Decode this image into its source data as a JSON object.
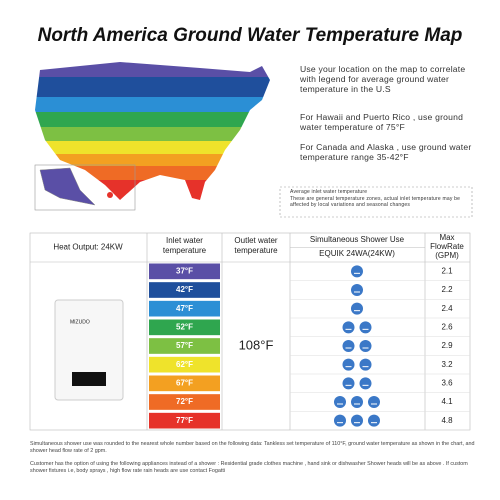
{
  "header": {
    "title": "North America Ground Water Temperature Map"
  },
  "notes": [
    "Use your location on the map to correlate with legend for average ground water temperature in the U.S",
    "For Hawaii and Puerto Rico , use ground water temperature of 75°F",
    "For Canada and Alaska , use ground water temperature range 35-42°F"
  ],
  "legend": {
    "title": "Average inlet water temperature",
    "text": "These are general temperature zones, actual inlet temperature may be affected by local variations and seasonal changes"
  },
  "table": {
    "headers": [
      "Heat Output: 24KW",
      "Inlet water temperature",
      "Outlet water temperature",
      "Simultaneous Shower Use",
      "Max FlowRate (GPM)"
    ],
    "subheader": "EQUIK 24WA(24KW)",
    "brand": "MIZUDO",
    "outlet": "108°F",
    "rows": [
      {
        "inlet": "37°F",
        "color": "#5a4fa6",
        "showers": 1,
        "flow": 2.1
      },
      {
        "inlet": "42°F",
        "color": "#1f4f9c",
        "showers": 1,
        "flow": 2.2
      },
      {
        "inlet": "47°F",
        "color": "#2b8fd5",
        "showers": 1,
        "flow": 2.4
      },
      {
        "inlet": "52°F",
        "color": "#2fa64f",
        "showers": 2,
        "flow": 2.6
      },
      {
        "inlet": "57°F",
        "color": "#7dc043",
        "showers": 2,
        "flow": 2.9
      },
      {
        "inlet": "62°F",
        "color": "#efe32b",
        "showers": 2,
        "flow": 3.2
      },
      {
        "inlet": "67°F",
        "color": "#f3a021",
        "showers": 2,
        "flow": 3.6
      },
      {
        "inlet": "72°F",
        "color": "#ef6b25",
        "showers": 3,
        "flow": 4.1
      },
      {
        "inlet": "77°F",
        "color": "#e6322a",
        "showers": 3,
        "flow": 4.8
      }
    ]
  },
  "footer": [
    "Simultaneous shower use was rounded to the nearest whole number based on the following data: Tankless set temperature of 110°F, ground water temperature as shown in the chart, and shower head flow rate of 2 gpm.",
    "Customer has the option of using the following appliances instead of a shower : Residential grade clothes machine , hand sink or dishwasher Shower heads will be as above . If custom shower fixtures i.e, body sprays , high flow rate rain heads are use contact Fogatti"
  ]
}
